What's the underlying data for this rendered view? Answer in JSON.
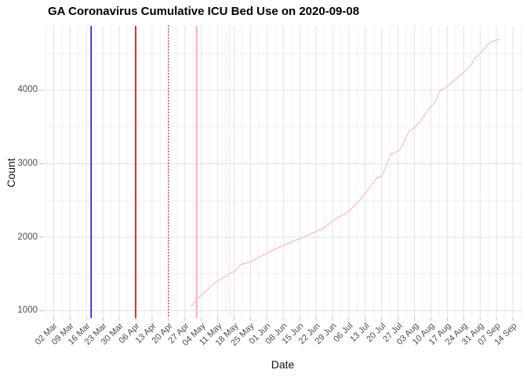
{
  "chart_data": {
    "type": "line",
    "title": "GA Coronavirus Cumulative ICU Bed Use on 2020-09-08",
    "xlabel": "Date",
    "ylabel": "Count",
    "legend": "none",
    "grid": "major and minor gridlines, light gray on white background",
    "x_tick_labels": [
      "02 Mar",
      "09 Mar",
      "16 Mar",
      "23 Mar",
      "30 Mar",
      "06 Apr",
      "13 Apr",
      "20 Apr",
      "27 Apr",
      "04 May",
      "11 May",
      "18 May",
      "25 May",
      "01 Jun",
      "08 Jun",
      "15 Jun",
      "22 Jun",
      "29 Jun",
      "06 Jul",
      "13 Jul",
      "20 Jul",
      "27 Jul",
      "03 Aug",
      "10 Aug",
      "17 Aug",
      "24 Aug",
      "31 Aug",
      "07 Sep",
      "14 Sep"
    ],
    "x_week_start_date": "2020-03-02",
    "x_domain_days_from_start": [
      -4.5,
      200
    ],
    "y_tick_values": [
      1000,
      2000,
      3000,
      4000
    ],
    "y_minor_values": [
      1500,
      2500,
      3500,
      4500
    ],
    "ylim": [
      900,
      4875
    ],
    "series": [
      {
        "name": "Cumulative ICU bed use",
        "color": "#ffb6c1",
        "style": "small daily points forming a line",
        "points": [
          [
            "2020-04-30",
            1075
          ],
          [
            "2020-05-02",
            1150
          ],
          [
            "2020-05-04",
            1210
          ],
          [
            "2020-05-08",
            1330
          ],
          [
            "2020-05-11",
            1405
          ],
          [
            "2020-05-16",
            1500
          ],
          [
            "2020-05-18",
            1530
          ],
          [
            "2020-05-21",
            1630
          ],
          [
            "2020-05-25",
            1665
          ],
          [
            "2020-06-01",
            1785
          ],
          [
            "2020-06-08",
            1890
          ],
          [
            "2020-06-15",
            1980
          ],
          [
            "2020-06-22",
            2080
          ],
          [
            "2020-06-25",
            2120
          ],
          [
            "2020-06-29",
            2215
          ],
          [
            "2020-07-02",
            2280
          ],
          [
            "2020-07-06",
            2355
          ],
          [
            "2020-07-10",
            2480
          ],
          [
            "2020-07-14",
            2640
          ],
          [
            "2020-07-18",
            2810
          ],
          [
            "2020-07-20",
            2830
          ],
          [
            "2020-07-24",
            3130
          ],
          [
            "2020-07-26",
            3160
          ],
          [
            "2020-07-28",
            3195
          ],
          [
            "2020-08-01",
            3460
          ],
          [
            "2020-08-03",
            3490
          ],
          [
            "2020-08-06",
            3600
          ],
          [
            "2020-08-09",
            3740
          ],
          [
            "2020-08-12",
            3850
          ],
          [
            "2020-08-14",
            4000
          ],
          [
            "2020-08-16",
            4030
          ],
          [
            "2020-08-19",
            4110
          ],
          [
            "2020-08-22",
            4190
          ],
          [
            "2020-08-25",
            4270
          ],
          [
            "2020-08-27",
            4340
          ],
          [
            "2020-08-29",
            4440
          ],
          [
            "2020-08-31",
            4500
          ],
          [
            "2020-09-02",
            4570
          ],
          [
            "2020-09-04",
            4645
          ],
          [
            "2020-09-06",
            4675
          ],
          [
            "2020-09-08",
            4690
          ]
        ]
      }
    ],
    "vlines": [
      {
        "date": "2020-03-18",
        "color": "#1f1fcc",
        "style": "solid",
        "width": 1.7
      },
      {
        "date": "2020-04-06",
        "color": "#dd0c0c",
        "style": "solid",
        "width": 1.7
      },
      {
        "date": "2020-04-20",
        "color": "#dd0c0c",
        "style": "dotted",
        "width": 1.6
      },
      {
        "date": "2020-05-02",
        "color": "#ffb0bd",
        "style": "solid",
        "width": 2.2
      },
      {
        "date": "2020-05-16",
        "color": "#ffccd5",
        "style": "dotted",
        "width": 1.8
      }
    ],
    "colors": {
      "background": "#ffffff",
      "grid_major": "#e3e3e3",
      "grid_minor": "#f1f1f1",
      "axis_tick": "#bfbfbf",
      "axis_text": "#4d4d4d",
      "title_text": "#000000"
    }
  }
}
